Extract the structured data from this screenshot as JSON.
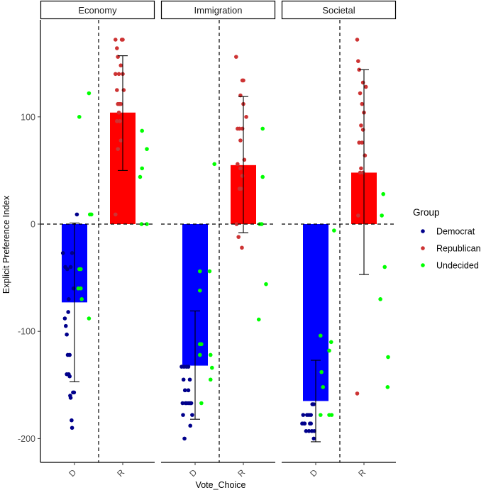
{
  "chart_data": {
    "type": "bar",
    "facets": [
      "Economy",
      "Immigration",
      "Societal"
    ],
    "categories": [
      "D",
      "R"
    ],
    "xlabel": "Vote_Choice",
    "ylabel": "Explicit Preference Index",
    "ylim": [
      -222,
      193
    ],
    "yticks": [
      -200,
      -100,
      0,
      100
    ],
    "bars": [
      {
        "facet": "Economy",
        "x": "D",
        "value": -73,
        "err_low": -147,
        "err_high": 1,
        "color": "#0000ff"
      },
      {
        "facet": "Economy",
        "x": "R",
        "value": 104,
        "err_low": 50,
        "err_high": 157,
        "color": "#ff0000"
      },
      {
        "facet": "Immigration",
        "x": "D",
        "value": -132,
        "err_low": -182,
        "err_high": -81,
        "color": "#0000ff"
      },
      {
        "facet": "Immigration",
        "x": "R",
        "value": 55,
        "err_low": -8,
        "err_high": 119,
        "color": "#ff0000"
      },
      {
        "facet": "Societal",
        "x": "D",
        "value": -165,
        "err_low": -203,
        "err_high": -127,
        "color": "#0000ff"
      },
      {
        "facet": "Societal",
        "x": "R",
        "value": 48,
        "err_low": -47,
        "err_high": 144,
        "color": "#ff0000"
      }
    ],
    "points": {
      "Economy": {
        "Democrat": [
          [
            -0.24,
            -27
          ],
          [
            0.05,
            9
          ],
          [
            -0.2,
            -88
          ],
          [
            -0.18,
            -95
          ],
          [
            -0.16,
            -103
          ],
          [
            -0.14,
            -122
          ],
          [
            -0.16,
            -140
          ],
          [
            -0.12,
            -140
          ],
          [
            -0.1,
            -142
          ],
          [
            -0.08,
            -162
          ],
          [
            -0.06,
            -183
          ],
          [
            -0.05,
            -190
          ],
          [
            -0.03,
            -157
          ],
          [
            -0.01,
            -157
          ],
          [
            -0.12,
            -70
          ],
          [
            -0.08,
            -40
          ],
          [
            -0.05,
            -27
          ],
          [
            -0.02,
            -60
          ],
          [
            -0.13,
            -82
          ],
          [
            -0.19,
            -40
          ],
          [
            -0.15,
            -42
          ],
          [
            -0.1,
            -122
          ],
          [
            -0.09,
            -160
          ]
        ],
        "Republican": [
          [
            0.85,
            172
          ],
          [
            0.98,
            172
          ],
          [
            1.0,
            172
          ],
          [
            0.9,
            156
          ],
          [
            0.88,
            164
          ],
          [
            0.96,
            148
          ],
          [
            0.85,
            140
          ],
          [
            0.92,
            140
          ],
          [
            1.0,
            140
          ],
          [
            0.88,
            125
          ],
          [
            1.02,
            125
          ],
          [
            0.9,
            112
          ],
          [
            0.96,
            112
          ],
          [
            0.92,
            104
          ],
          [
            0.88,
            96
          ],
          [
            0.94,
            96
          ],
          [
            0.9,
            70
          ],
          [
            0.96,
            78
          ],
          [
            0.85,
            9
          ],
          [
            0.93,
            112
          ]
        ],
        "Undecided": [
          [
            0.3,
            122
          ],
          [
            0.35,
            9
          ],
          [
            0.32,
            9
          ],
          [
            0.1,
            100
          ],
          [
            0.1,
            -42
          ],
          [
            0.13,
            -42
          ],
          [
            0.08,
            -60
          ],
          [
            0.13,
            -60
          ],
          [
            0.15,
            -70
          ],
          [
            0.3,
            -88
          ],
          [
            1.4,
            87
          ],
          [
            1.5,
            70
          ],
          [
            1.4,
            52
          ],
          [
            1.36,
            44
          ],
          [
            1.39,
            0
          ],
          [
            1.5,
            0
          ]
        ]
      },
      "Immigration": {
        "Democrat": [
          [
            -0.28,
            -133
          ],
          [
            -0.23,
            -133
          ],
          [
            -0.18,
            -133
          ],
          [
            -0.14,
            -133
          ],
          [
            -0.24,
            -145
          ],
          [
            -0.11,
            -145
          ],
          [
            -0.21,
            -155
          ],
          [
            -0.14,
            -155
          ],
          [
            -0.26,
            -167
          ],
          [
            -0.2,
            -167
          ],
          [
            -0.17,
            -167
          ],
          [
            -0.13,
            -167
          ],
          [
            -0.1,
            -167
          ],
          [
            -0.08,
            -167
          ],
          [
            -0.25,
            -178
          ],
          [
            -0.06,
            -178
          ],
          [
            -0.1,
            -188
          ],
          [
            -0.22,
            -200
          ]
        ],
        "Republican": [
          [
            0.85,
            156
          ],
          [
            0.98,
            134
          ],
          [
            1.0,
            134
          ],
          [
            0.94,
            120
          ],
          [
            1.0,
            112
          ],
          [
            1.06,
            100
          ],
          [
            0.88,
            89
          ],
          [
            0.92,
            89
          ],
          [
            0.98,
            89
          ],
          [
            0.94,
            78
          ],
          [
            1.02,
            60
          ],
          [
            0.88,
            56
          ],
          [
            0.94,
            52
          ],
          [
            0.98,
            45
          ],
          [
            0.92,
            33
          ],
          [
            0.95,
            33
          ],
          [
            0.9,
            -12
          ],
          [
            0.86,
            0
          ],
          [
            0.97,
            -22
          ]
        ],
        "Undecided": [
          [
            0.4,
            56
          ],
          [
            0.1,
            -44
          ],
          [
            0.1,
            -62
          ],
          [
            0.13,
            -112
          ],
          [
            0.1,
            -112
          ],
          [
            0.3,
            -44
          ],
          [
            0.1,
            -122
          ],
          [
            0.32,
            -122
          ],
          [
            0.35,
            -134
          ],
          [
            0.32,
            -145
          ],
          [
            0.13,
            -167
          ],
          [
            1.4,
            89
          ],
          [
            1.4,
            44
          ],
          [
            1.34,
            0
          ],
          [
            1.38,
            0
          ],
          [
            1.47,
            -56
          ],
          [
            1.32,
            -89
          ]
        ]
      },
      "Societal": {
        "Democrat": [
          [
            -0.26,
            -178
          ],
          [
            -0.18,
            -178
          ],
          [
            -0.07,
            -168
          ],
          [
            -0.04,
            -168
          ],
          [
            -0.28,
            -186
          ],
          [
            -0.23,
            -186
          ],
          [
            -0.1,
            -186
          ],
          [
            -0.12,
            -186
          ],
          [
            -0.2,
            -193
          ],
          [
            -0.14,
            -193
          ],
          [
            -0.08,
            -193
          ],
          [
            -0.03,
            -193
          ],
          [
            -0.24,
            -186
          ],
          [
            -0.04,
            -200
          ],
          [
            -0.14,
            -178
          ],
          [
            -0.1,
            -178
          ]
        ],
        "Republican": [
          [
            0.86,
            172
          ],
          [
            0.88,
            152
          ],
          [
            0.9,
            144
          ],
          [
            0.98,
            132
          ],
          [
            1.04,
            128
          ],
          [
            0.92,
            122
          ],
          [
            0.96,
            112
          ],
          [
            1.0,
            104
          ],
          [
            0.94,
            92
          ],
          [
            0.98,
            88
          ],
          [
            1.02,
            64
          ],
          [
            0.94,
            52
          ],
          [
            0.9,
            76
          ],
          [
            0.96,
            76
          ],
          [
            0.92,
            48
          ],
          [
            0.98,
            48
          ],
          [
            0.88,
            8
          ],
          [
            0.86,
            -158
          ]
        ],
        "Undecided": [
          [
            0.38,
            -6
          ],
          [
            0.1,
            -104
          ],
          [
            0.32,
            -110
          ],
          [
            0.28,
            -118
          ],
          [
            0.12,
            -138
          ],
          [
            0.15,
            -152
          ],
          [
            0.1,
            -178
          ],
          [
            0.28,
            -178
          ],
          [
            0.33,
            -178
          ],
          [
            1.4,
            28
          ],
          [
            1.37,
            8
          ],
          [
            1.43,
            -40
          ],
          [
            1.34,
            -70
          ],
          [
            1.5,
            -124
          ],
          [
            1.49,
            -152
          ]
        ]
      }
    },
    "legend": {
      "title": "Group",
      "entries": [
        {
          "label": "Democrat",
          "color": "#00008b"
        },
        {
          "label": "Republican",
          "color": "#cd3333"
        },
        {
          "label": "Undecided",
          "color": "#00ff00"
        }
      ]
    }
  }
}
